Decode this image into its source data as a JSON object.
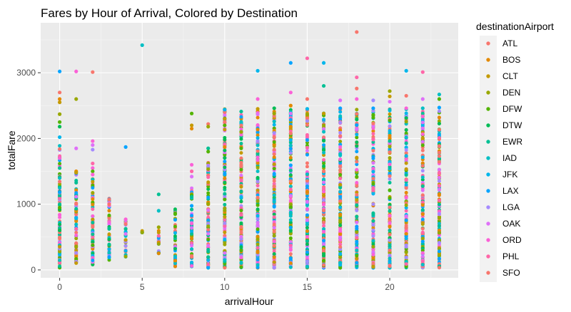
{
  "chart_data": {
    "type": "scatter",
    "title": "Fares by Hour of Arrival, Colored by Destination",
    "xlabel": "arrivalHour",
    "ylabel": "totalFare",
    "xlim": [
      -1.15,
      24.15
    ],
    "ylim": [
      -120,
      3760
    ],
    "x_ticks": [
      0,
      5,
      10,
      15,
      20
    ],
    "y_ticks": [
      0,
      1000,
      2000,
      3000
    ],
    "grid": true,
    "legend_position": "right",
    "legend_title": "destinationAirport",
    "series": [
      {
        "name": "ATL",
        "color": "#F8766D"
      },
      {
        "name": "BOS",
        "color": "#E38900"
      },
      {
        "name": "CLT",
        "color": "#C49A00"
      },
      {
        "name": "DEN",
        "color": "#99A800"
      },
      {
        "name": "DFW",
        "color": "#53B400"
      },
      {
        "name": "DTW",
        "color": "#00BC56"
      },
      {
        "name": "EWR",
        "color": "#00C094"
      },
      {
        "name": "IAD",
        "color": "#00BFC4"
      },
      {
        "name": "JFK",
        "color": "#00B6EB"
      },
      {
        "name": "LAX",
        "color": "#06A4FF"
      },
      {
        "name": "LGA",
        "color": "#A58AFF"
      },
      {
        "name": "OAK",
        "color": "#DF70F8"
      },
      {
        "name": "ORD",
        "color": "#FB61D7"
      },
      {
        "name": "PHL",
        "color": "#FF66A8"
      },
      {
        "name": "SFO",
        "color": "#F8766D"
      }
    ],
    "hour_columns": [
      {
        "hour": 0,
        "min": 30,
        "max": 1900,
        "scattered": [
          [
            2700,
            0
          ],
          [
            2600,
            1
          ],
          [
            2550,
            2
          ],
          [
            2370,
            3
          ],
          [
            2250,
            4
          ],
          [
            2180,
            5
          ],
          [
            2020,
            8
          ],
          [
            1700,
            12
          ],
          [
            1550,
            6
          ],
          [
            1400,
            7
          ],
          [
            3020,
            9
          ]
        ]
      },
      {
        "hour": 1,
        "min": 100,
        "max": 1500,
        "scattered": [
          [
            3020,
            12
          ],
          [
            2600,
            3
          ],
          [
            1850,
            11
          ],
          [
            1500,
            1
          ],
          [
            1480,
            2
          ]
        ]
      },
      {
        "hour": 2,
        "min": 80,
        "max": 1450,
        "scattered": [
          [
            3010,
            14
          ],
          [
            1960,
            12
          ],
          [
            1900,
            11
          ],
          [
            1830,
            10
          ],
          [
            1620,
            13
          ],
          [
            1550,
            12
          ],
          [
            1500,
            4
          ],
          [
            1450,
            12
          ]
        ]
      },
      {
        "hour": 3,
        "min": 150,
        "max": 1100,
        "scattered": [
          [
            1070,
            0
          ],
          [
            1000,
            14
          ]
        ]
      },
      {
        "hour": 4,
        "min": 200,
        "max": 780,
        "scattered": [
          [
            1870,
            9
          ],
          [
            770,
            12
          ]
        ]
      },
      {
        "hour": 5,
        "min": 560,
        "max": 600,
        "scattered": [
          [
            3420,
            7
          ],
          [
            570,
            3
          ]
        ]
      },
      {
        "hour": 6,
        "min": 250,
        "max": 650,
        "scattered": [
          [
            1150,
            6
          ],
          [
            900,
            7
          ],
          [
            650,
            3
          ]
        ]
      },
      {
        "hour": 7,
        "min": 50,
        "max": 950,
        "scattered": []
      },
      {
        "hour": 8,
        "min": 50,
        "max": 1250,
        "scattered": [
          [
            2380,
            4
          ],
          [
            2200,
            2
          ],
          [
            2150,
            1
          ],
          [
            1600,
            12
          ],
          [
            1500,
            13
          ],
          [
            1420,
            11
          ]
        ]
      },
      {
        "hour": 9,
        "min": 30,
        "max": 1700,
        "scattered": [
          [
            2220,
            0
          ],
          [
            2180,
            3
          ],
          [
            1850,
            6
          ],
          [
            1800,
            4
          ]
        ]
      },
      {
        "hour": 10,
        "min": 30,
        "max": 2450,
        "scattered": [
          [
            2440,
            8
          ],
          [
            2300,
            2
          ],
          [
            2250,
            0
          ],
          [
            2200,
            4
          ],
          [
            1870,
            1
          ]
        ]
      },
      {
        "hour": 11,
        "min": 30,
        "max": 2420,
        "scattered": [
          [
            2410,
            6
          ],
          [
            2100,
            3
          ]
        ]
      },
      {
        "hour": 12,
        "min": 30,
        "max": 2450,
        "scattered": [
          [
            3030,
            8
          ],
          [
            2600,
            12
          ],
          [
            2450,
            2
          ]
        ]
      },
      {
        "hour": 13,
        "min": 30,
        "max": 2450,
        "scattered": [
          [
            2460,
            5
          ],
          [
            2380,
            3
          ]
        ]
      },
      {
        "hour": 14,
        "min": 30,
        "max": 2450,
        "scattered": [
          [
            3150,
            9
          ],
          [
            2700,
            12
          ],
          [
            2500,
            1
          ]
        ]
      },
      {
        "hour": 15,
        "min": 30,
        "max": 2450,
        "scattered": [
          [
            3220,
            13
          ],
          [
            2600,
            0
          ],
          [
            2450,
            8
          ]
        ]
      },
      {
        "hour": 16,
        "min": 30,
        "max": 2450,
        "scattered": [
          [
            3150,
            8
          ],
          [
            2800,
            6
          ],
          [
            2380,
            2
          ]
        ]
      },
      {
        "hour": 17,
        "min": 30,
        "max": 2450,
        "scattered": [
          [
            2580,
            11
          ],
          [
            2460,
            9
          ]
        ]
      },
      {
        "hour": 18,
        "min": 30,
        "max": 2450,
        "scattered": [
          [
            3620,
            14
          ],
          [
            2930,
            13
          ],
          [
            2760,
            0
          ],
          [
            2600,
            12
          ]
        ]
      },
      {
        "hour": 19,
        "min": 30,
        "max": 2450,
        "scattered": [
          [
            2580,
            10
          ],
          [
            2460,
            9
          ]
        ]
      },
      {
        "hour": 20,
        "min": 30,
        "max": 2450,
        "scattered": [
          [
            2720,
            3
          ],
          [
            2640,
            2
          ],
          [
            2560,
            11
          ]
        ]
      },
      {
        "hour": 21,
        "min": 30,
        "max": 2450,
        "scattered": [
          [
            3030,
            8
          ],
          [
            2650,
            0
          ],
          [
            2460,
            12
          ]
        ]
      },
      {
        "hour": 22,
        "min": 30,
        "max": 2450,
        "scattered": [
          [
            3010,
            13
          ],
          [
            2600,
            11
          ],
          [
            2460,
            7
          ]
        ]
      },
      {
        "hour": 23,
        "min": 30,
        "max": 2450,
        "scattered": [
          [
            2670,
            7
          ],
          [
            2600,
            4
          ],
          [
            2470,
            9
          ]
        ]
      }
    ]
  }
}
